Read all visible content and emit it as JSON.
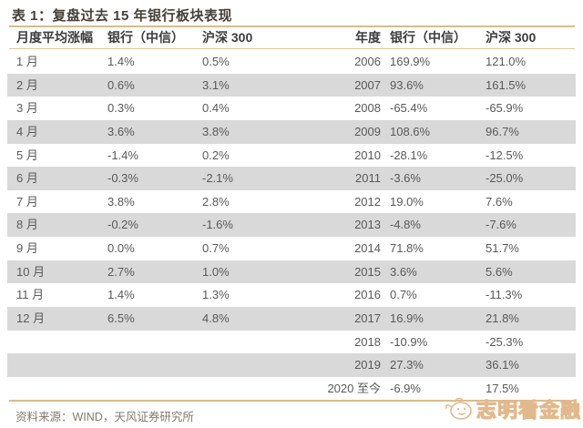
{
  "title": "表 1：复盘过去 15 年银行板块表现",
  "table": {
    "headers": {
      "month": "月度平均涨幅",
      "bank_m": "银行（中信）",
      "hs300_m": "沪深 300",
      "year": "年度",
      "bank_y": "银行（中信）",
      "hs300_y": "沪深 300"
    },
    "rows": [
      {
        "month": "1 月",
        "bank_m": "1.4%",
        "hs300_m": "0.5%",
        "year": "2006",
        "bank_y": "169.9%",
        "hs300_y": "121.0%"
      },
      {
        "month": "2 月",
        "bank_m": "0.6%",
        "hs300_m": "3.1%",
        "year": "2007",
        "bank_y": "93.6%",
        "hs300_y": "161.5%"
      },
      {
        "month": "3 月",
        "bank_m": "0.3%",
        "hs300_m": "0.4%",
        "year": "2008",
        "bank_y": "-65.4%",
        "hs300_y": "-65.9%"
      },
      {
        "month": "4 月",
        "bank_m": "3.6%",
        "hs300_m": "3.8%",
        "year": "2009",
        "bank_y": "108.6%",
        "hs300_y": "96.7%"
      },
      {
        "month": "5 月",
        "bank_m": "-1.4%",
        "hs300_m": "0.2%",
        "year": "2010",
        "bank_y": "-28.1%",
        "hs300_y": "-12.5%"
      },
      {
        "month": "6 月",
        "bank_m": "-0.3%",
        "hs300_m": "-2.1%",
        "year": "2011",
        "bank_y": "-3.6%",
        "hs300_y": "-25.0%"
      },
      {
        "month": "7 月",
        "bank_m": "3.8%",
        "hs300_m": "2.8%",
        "year": "2012",
        "bank_y": "19.0%",
        "hs300_y": "7.6%"
      },
      {
        "month": "8 月",
        "bank_m": "-0.2%",
        "hs300_m": "-1.6%",
        "year": "2013",
        "bank_y": "-4.8%",
        "hs300_y": "-7.6%"
      },
      {
        "month": "9 月",
        "bank_m": "0.0%",
        "hs300_m": "0.7%",
        "year": "2014",
        "bank_y": "71.8%",
        "hs300_y": "51.7%"
      },
      {
        "month": "10 月",
        "bank_m": "2.7%",
        "hs300_m": "1.0%",
        "year": "2015",
        "bank_y": "3.6%",
        "hs300_y": "5.6%"
      },
      {
        "month": "11 月",
        "bank_m": "1.4%",
        "hs300_m": "1.3%",
        "year": "2016",
        "bank_y": "0.7%",
        "hs300_y": "-11.3%"
      },
      {
        "month": "12 月",
        "bank_m": "6.5%",
        "hs300_m": "4.8%",
        "year": "2017",
        "bank_y": "16.9%",
        "hs300_y": "21.8%"
      },
      {
        "month": "",
        "bank_m": "",
        "hs300_m": "",
        "year": "2018",
        "bank_y": "-10.9%",
        "hs300_y": "-25.3%"
      },
      {
        "month": "",
        "bank_m": "",
        "hs300_m": "",
        "year": "2019",
        "bank_y": "27.3%",
        "hs300_y": "36.1%"
      },
      {
        "month": "",
        "bank_m": "",
        "hs300_m": "",
        "year": "2020 至今",
        "bank_y": "-6.9%",
        "hs300_y": "17.5%"
      }
    ]
  },
  "source": "资料来源：WIND，天风证券研究所",
  "watermark": "志明看金融",
  "colors": {
    "accent_line": "#d9bc8e",
    "stripe": "#d9d9d9",
    "title_text": "#453e37",
    "header_text": "#3c3c3c",
    "body_text": "#595959",
    "source_text": "#85796a",
    "watermark": "#e2b98c"
  },
  "chart_data": {
    "type": "table",
    "title": "表 1：复盘过去 15 年银行板块表现",
    "monthly": {
      "categories": [
        "1 月",
        "2 月",
        "3 月",
        "4 月",
        "5 月",
        "6 月",
        "7 月",
        "8 月",
        "9 月",
        "10 月",
        "11 月",
        "12 月"
      ],
      "series": [
        {
          "name": "银行（中信）",
          "values": [
            1.4,
            0.6,
            0.3,
            3.6,
            -1.4,
            -0.3,
            3.8,
            -0.2,
            0.0,
            2.7,
            1.4,
            6.5
          ]
        },
        {
          "name": "沪深 300",
          "values": [
            0.5,
            3.1,
            0.4,
            3.8,
            0.2,
            -2.1,
            2.8,
            -1.6,
            0.7,
            1.0,
            1.3,
            4.8
          ]
        }
      ],
      "unit": "%"
    },
    "yearly": {
      "categories": [
        "2006",
        "2007",
        "2008",
        "2009",
        "2010",
        "2011",
        "2012",
        "2013",
        "2014",
        "2015",
        "2016",
        "2017",
        "2018",
        "2019",
        "2020 至今"
      ],
      "series": [
        {
          "name": "银行（中信）",
          "values": [
            169.9,
            93.6,
            -65.4,
            108.6,
            -28.1,
            -3.6,
            19.0,
            -4.8,
            71.8,
            3.6,
            0.7,
            16.9,
            -10.9,
            27.3,
            -6.9
          ]
        },
        {
          "name": "沪深 300",
          "values": [
            121.0,
            161.5,
            -65.9,
            96.7,
            -12.5,
            -25.0,
            7.6,
            -7.6,
            51.7,
            5.6,
            -11.3,
            21.8,
            -25.3,
            36.1,
            17.5
          ]
        }
      ],
      "unit": "%"
    }
  }
}
